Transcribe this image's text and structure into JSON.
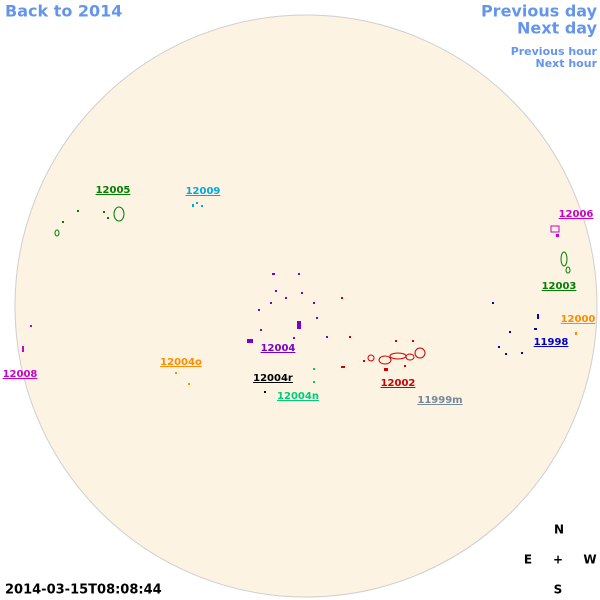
{
  "navigation": {
    "back": "Back to 2014",
    "previous_day": "Previous day",
    "next_day": "Next day",
    "previous_hour": "Previous hour",
    "next_hour": "Next hour"
  },
  "regions": [
    "12005",
    "12009",
    "12006",
    "12003",
    "12000",
    "11998",
    "12004",
    "12004o",
    "12008",
    "12004r",
    "12002",
    "12004n",
    "11999m"
  ],
  "compass": {
    "north": "N",
    "east": "E",
    "center": "+",
    "west": "W",
    "south": "S"
  },
  "timestamp": "2014-03-15T08:08:44"
}
